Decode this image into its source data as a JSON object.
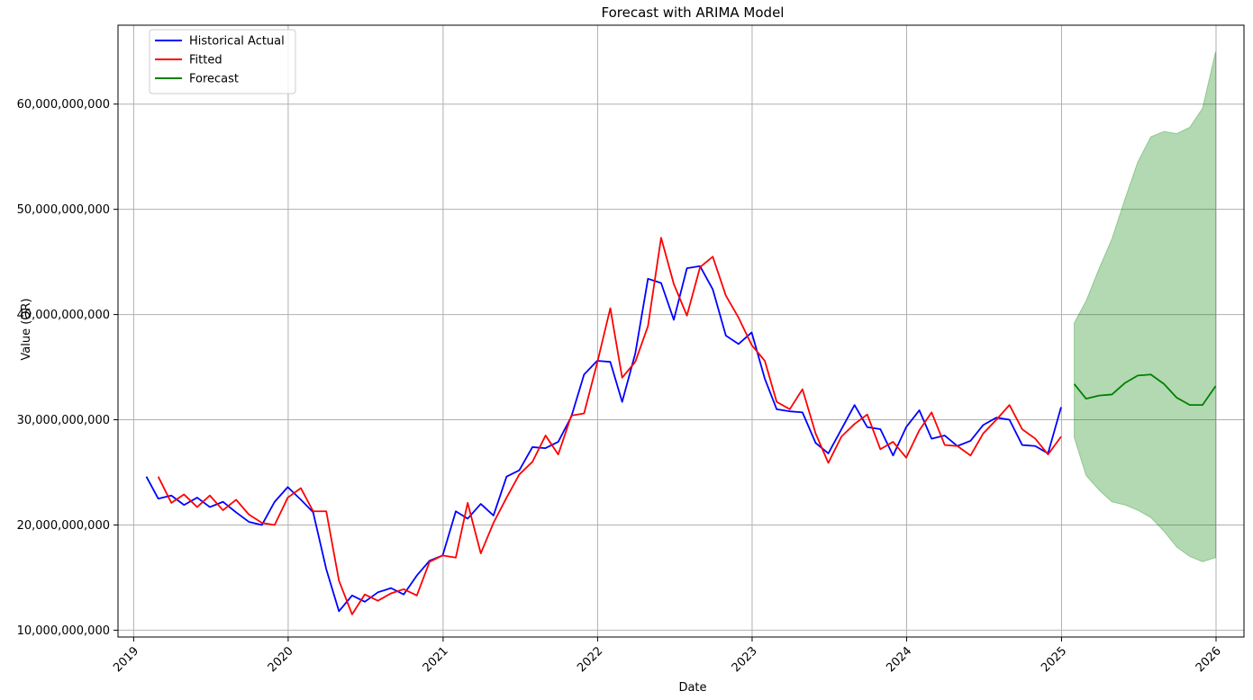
{
  "chart_data": {
    "type": "line",
    "title": "Forecast with ARIMA Model",
    "xlabel": "Date",
    "ylabel": "Value (QR)",
    "xlim": [
      "2018-11-25",
      "2026-03-08"
    ],
    "ylim": [
      9350000000,
      67500000000
    ],
    "grid": true,
    "legend_position": "top-left",
    "x_ticks": [
      "2019",
      "2020",
      "2021",
      "2022",
      "2023",
      "2024",
      "2025",
      "2026"
    ],
    "y_ticks": [
      "10,000,000,000",
      "20,000,000,000",
      "30,000,000,000",
      "40,000,000,000",
      "50,000,000,000",
      "60,000,000,000"
    ],
    "series": [
      {
        "name": "Historical Actual",
        "color": "#0000ff",
        "style": "line",
        "x": [
          "2019-01-31",
          "2019-02-28",
          "2019-03-31",
          "2019-04-30",
          "2019-05-31",
          "2019-06-30",
          "2019-07-31",
          "2019-08-31",
          "2019-09-30",
          "2019-10-31",
          "2019-11-30",
          "2019-12-31",
          "2020-01-31",
          "2020-02-29",
          "2020-03-31",
          "2020-04-30",
          "2020-05-31",
          "2020-06-30",
          "2020-07-31",
          "2020-08-31",
          "2020-09-30",
          "2020-10-31",
          "2020-11-30",
          "2020-12-31",
          "2021-01-31",
          "2021-02-28",
          "2021-03-31",
          "2021-04-30",
          "2021-05-31",
          "2021-06-30",
          "2021-07-31",
          "2021-08-31",
          "2021-09-30",
          "2021-10-31",
          "2021-11-30",
          "2021-12-31",
          "2022-01-31",
          "2022-02-28",
          "2022-03-31",
          "2022-04-30",
          "2022-05-31",
          "2022-06-30",
          "2022-07-31",
          "2022-08-31",
          "2022-09-30",
          "2022-10-31",
          "2022-11-30",
          "2022-12-31",
          "2023-01-31",
          "2023-02-28",
          "2023-03-31",
          "2023-04-30",
          "2023-05-31",
          "2023-06-30",
          "2023-07-31",
          "2023-08-31",
          "2023-09-30",
          "2023-10-31",
          "2023-11-30",
          "2023-12-31",
          "2024-01-31",
          "2024-02-29",
          "2024-03-31",
          "2024-04-30",
          "2024-05-31",
          "2024-06-30",
          "2024-07-31",
          "2024-08-31",
          "2024-09-30",
          "2024-10-31",
          "2024-11-30",
          "2024-12-31"
        ],
        "values": [
          24600000000,
          22500000000,
          22800000000,
          21900000000,
          22600000000,
          21700000000,
          22200000000,
          21200000000,
          20300000000,
          20000000000,
          22200000000,
          23600000000,
          22400000000,
          21200000000,
          15800000000,
          11800000000,
          13300000000,
          12700000000,
          13600000000,
          14000000000,
          13400000000,
          15200000000,
          16600000000,
          17100000000,
          21300000000,
          20600000000,
          22000000000,
          20900000000,
          24600000000,
          25200000000,
          27400000000,
          27300000000,
          27900000000,
          30300000000,
          34300000000,
          35600000000,
          35500000000,
          31700000000,
          36300000000,
          43400000000,
          43000000000,
          39500000000,
          44400000000,
          44600000000,
          42400000000,
          38000000000,
          37200000000,
          38300000000,
          33900000000,
          31000000000,
          30800000000,
          30700000000,
          27800000000,
          26800000000,
          29100000000,
          31400000000,
          29300000000,
          29100000000,
          26600000000,
          29300000000,
          30900000000,
          28200000000,
          28500000000,
          27500000000,
          28000000000,
          29500000000,
          30200000000,
          30000000000,
          27600000000,
          27500000000,
          26800000000,
          31200000000
        ]
      },
      {
        "name": "Fitted",
        "color": "#ff0000",
        "style": "line",
        "x": [
          "2019-02-28",
          "2019-03-31",
          "2019-04-30",
          "2019-05-31",
          "2019-06-30",
          "2019-07-31",
          "2019-08-31",
          "2019-09-30",
          "2019-10-31",
          "2019-11-30",
          "2019-12-31",
          "2020-01-31",
          "2020-02-29",
          "2020-03-31",
          "2020-04-30",
          "2020-05-31",
          "2020-06-30",
          "2020-07-31",
          "2020-08-31",
          "2020-09-30",
          "2020-10-31",
          "2020-11-30",
          "2020-12-31",
          "2021-01-31",
          "2021-02-28",
          "2021-03-31",
          "2021-04-30",
          "2021-05-31",
          "2021-06-30",
          "2021-07-31",
          "2021-08-31",
          "2021-09-30",
          "2021-10-31",
          "2021-11-30",
          "2021-12-31",
          "2022-01-31",
          "2022-02-28",
          "2022-03-31",
          "2022-04-30",
          "2022-05-31",
          "2022-06-30",
          "2022-07-31",
          "2022-08-31",
          "2022-09-30",
          "2022-10-31",
          "2022-11-30",
          "2022-12-31",
          "2023-01-31",
          "2023-02-28",
          "2023-03-31",
          "2023-04-30",
          "2023-05-31",
          "2023-06-30",
          "2023-07-31",
          "2023-08-31",
          "2023-09-30",
          "2023-10-31",
          "2023-11-30",
          "2023-12-31",
          "2024-01-31",
          "2024-02-29",
          "2024-03-31",
          "2024-04-30",
          "2024-05-31",
          "2024-06-30",
          "2024-07-31",
          "2024-08-31",
          "2024-09-30",
          "2024-10-31",
          "2024-11-30",
          "2024-12-31"
        ],
        "values": [
          24600000000,
          22100000000,
          22900000000,
          21700000000,
          22800000000,
          21400000000,
          22400000000,
          21000000000,
          20200000000,
          20000000000,
          22600000000,
          23500000000,
          21300000000,
          21300000000,
          14700000000,
          11500000000,
          13400000000,
          12800000000,
          13500000000,
          13900000000,
          13300000000,
          16500000000,
          17100000000,
          16900000000,
          22100000000,
          17300000000,
          20200000000,
          22600000000,
          24800000000,
          26000000000,
          28500000000,
          26700000000,
          30400000000,
          30600000000,
          35400000000,
          40600000000,
          34000000000,
          35500000000,
          38900000000,
          47300000000,
          42900000000,
          39900000000,
          44500000000,
          45500000000,
          41800000000,
          39700000000,
          37100000000,
          35600000000,
          31700000000,
          31000000000,
          32900000000,
          28700000000,
          25900000000,
          28400000000,
          29600000000,
          30500000000,
          27200000000,
          27900000000,
          26400000000,
          29000000000,
          30700000000,
          27600000000,
          27500000000,
          26600000000,
          28700000000,
          30000000000,
          31400000000,
          29100000000,
          28200000000,
          26700000000,
          28400000000
        ]
      },
      {
        "name": "Forecast",
        "color": "#008000",
        "style": "line",
        "x": [
          "2025-01-31",
          "2025-02-28",
          "2025-03-31",
          "2025-04-30",
          "2025-05-31",
          "2025-06-30",
          "2025-07-31",
          "2025-08-31",
          "2025-09-30",
          "2025-10-31",
          "2025-11-30",
          "2025-12-31"
        ],
        "values": [
          33400000000,
          32000000000,
          32300000000,
          32400000000,
          33500000000,
          34200000000,
          34300000000,
          33400000000,
          32100000000,
          31400000000,
          31400000000,
          33200000000
        ]
      },
      {
        "style": "band",
        "color": "#008000",
        "opacity": 0.3,
        "x": [
          "2025-01-31",
          "2025-02-28",
          "2025-03-31",
          "2025-04-30",
          "2025-05-31",
          "2025-06-30",
          "2025-07-31",
          "2025-08-31",
          "2025-09-30",
          "2025-10-31",
          "2025-11-30",
          "2025-12-31"
        ],
        "upper": [
          39200000000,
          41300000000,
          44400000000,
          47200000000,
          51000000000,
          54500000000,
          56900000000,
          57400000000,
          57200000000,
          57800000000,
          59600000000,
          65000000000
        ],
        "lower": [
          28300000000,
          24700000000,
          23300000000,
          22200000000,
          21900000000,
          21400000000,
          20700000000,
          19400000000,
          17900000000,
          17000000000,
          16500000000,
          16900000000
        ]
      }
    ]
  }
}
